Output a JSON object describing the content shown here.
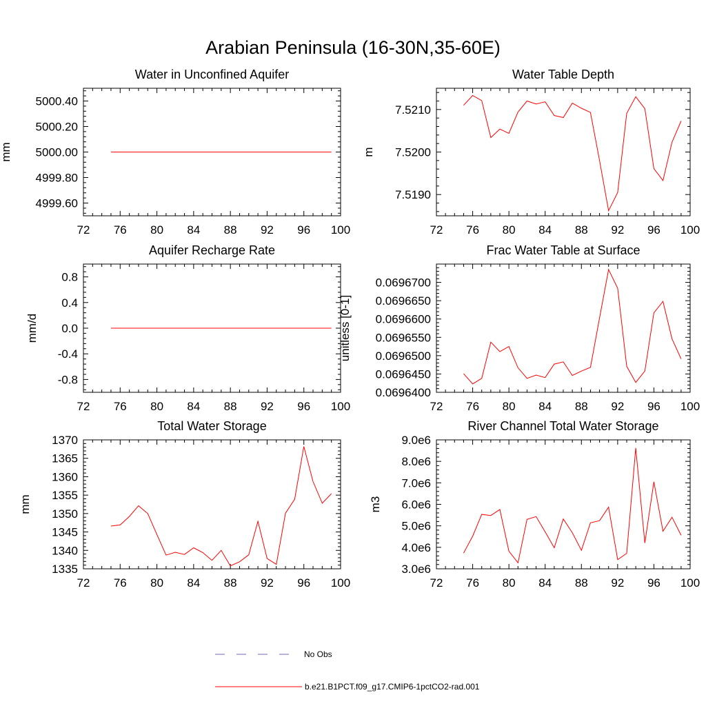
{
  "figure": {
    "title": "Arabian Peninsula (16-30N,35-60E)"
  },
  "legend": {
    "entries": [
      {
        "label": "No Obs",
        "color": "#6b6bb8",
        "dash": true
      },
      {
        "label": "b.e21.B1PCT.f09_g17.CMIP6-1pctCO2-rad.001",
        "color": "#ff0000",
        "dash": false
      }
    ]
  },
  "chart_data": [
    {
      "type": "line",
      "title": "Water in Unconfined Aquifer",
      "xlabel": "",
      "ylabel": "mm",
      "xlim": [
        72,
        100
      ],
      "ylim": [
        4999.5,
        5000.5
      ],
      "xticks": [
        72,
        76,
        80,
        84,
        88,
        92,
        96,
        100
      ],
      "yticks": [
        4999.6,
        4999.8,
        5000.0,
        5000.2,
        5000.4
      ],
      "ytick_labels": [
        "4999.60",
        "4999.80",
        "5000.00",
        "5000.20",
        "5000.40"
      ],
      "x": [
        75,
        76,
        77,
        78,
        79,
        80,
        81,
        82,
        83,
        84,
        85,
        86,
        87,
        88,
        89,
        90,
        91,
        92,
        93,
        94,
        95,
        96,
        97,
        98,
        99
      ],
      "series": [
        {
          "color": "#ff0000",
          "values": [
            5000.0,
            5000.0,
            5000.0,
            5000.0,
            5000.0,
            5000.0,
            5000.0,
            5000.0,
            5000.0,
            5000.0,
            5000.0,
            5000.0,
            5000.0,
            5000.0,
            5000.0,
            5000.0,
            5000.0,
            5000.0,
            5000.0,
            5000.0,
            5000.0,
            5000.0,
            5000.0,
            5000.0,
            5000.0
          ]
        }
      ]
    },
    {
      "type": "line",
      "title": "Water Table Depth",
      "xlabel": "",
      "ylabel": "m",
      "xlim": [
        72,
        100
      ],
      "ylim": [
        7.5185,
        7.5215
      ],
      "xticks": [
        72,
        76,
        80,
        84,
        88,
        92,
        96,
        100
      ],
      "yticks": [
        7.519,
        7.52,
        7.521
      ],
      "ytick_labels": [
        "7.5190",
        "7.5200",
        "7.5210"
      ],
      "x": [
        75,
        76,
        77,
        78,
        79,
        80,
        81,
        82,
        83,
        84,
        85,
        86,
        87,
        88,
        89,
        90,
        91,
        92,
        93,
        94,
        95,
        96,
        97,
        98,
        99
      ],
      "series": [
        {
          "color": "#ff0000",
          "values": [
            7.5211,
            7.52133,
            7.52121,
            7.52034,
            7.52054,
            7.52044,
            7.52094,
            7.5212,
            7.52113,
            7.52118,
            7.52086,
            7.52081,
            7.52115,
            7.52103,
            7.52093,
            7.5198,
            7.51862,
            7.51905,
            7.52091,
            7.5213,
            7.52102,
            7.51961,
            7.51933,
            7.52023,
            7.52073
          ]
        }
      ]
    },
    {
      "type": "line",
      "title": "Aquifer Recharge Rate",
      "xlabel": "",
      "ylabel": "mm/d",
      "xlim": [
        72,
        100
      ],
      "ylim": [
        -1.0,
        1.0
      ],
      "xticks": [
        72,
        76,
        80,
        84,
        88,
        92,
        96,
        100
      ],
      "yticks": [
        -0.8,
        -0.4,
        0.0,
        0.4,
        0.8
      ],
      "ytick_labels": [
        "-0.8",
        "-0.4",
        "0.0",
        "0.4",
        "0.8"
      ],
      "x": [
        75,
        76,
        77,
        78,
        79,
        80,
        81,
        82,
        83,
        84,
        85,
        86,
        87,
        88,
        89,
        90,
        91,
        92,
        93,
        94,
        95,
        96,
        97,
        98,
        99
      ],
      "series": [
        {
          "color": "#ff0000",
          "values": [
            0,
            0,
            0,
            0,
            0,
            0,
            0,
            0,
            0,
            0,
            0,
            0,
            0,
            0,
            0,
            0,
            0,
            0,
            0,
            0,
            0,
            0,
            0,
            0,
            0
          ]
        }
      ]
    },
    {
      "type": "line",
      "title": "Frac Water Table at Surface",
      "xlabel": "",
      "ylabel": "unitless [0-1]",
      "xlim": [
        72,
        100
      ],
      "ylim": [
        0.06964,
        0.069675
      ],
      "xticks": [
        72,
        76,
        80,
        84,
        88,
        92,
        96,
        100
      ],
      "yticks": [
        0.06964,
        0.069645,
        0.06965,
        0.069655,
        0.06966,
        0.069665,
        0.06967
      ],
      "ytick_labels": [
        "0.0696400",
        "0.0696450",
        "0.0696500",
        "0.0696550",
        "0.0696600",
        "0.0696650",
        "0.0696700"
      ],
      "x": [
        75,
        76,
        77,
        78,
        79,
        80,
        81,
        82,
        83,
        84,
        85,
        86,
        87,
        88,
        89,
        90,
        91,
        92,
        93,
        94,
        95,
        96,
        97,
        98,
        99
      ],
      "series": [
        {
          "color": "#ff0000",
          "values": [
            0.0696451,
            0.0696423,
            0.0696438,
            0.0696537,
            0.0696511,
            0.0696525,
            0.0696467,
            0.0696438,
            0.0696447,
            0.069644,
            0.0696477,
            0.0696483,
            0.0696446,
            0.0696458,
            0.0696468,
            0.0696603,
            0.0696735,
            0.0696684,
            0.0696471,
            0.0696427,
            0.0696458,
            0.0696617,
            0.0696648,
            0.0696546,
            0.0696491
          ]
        }
      ]
    },
    {
      "type": "line",
      "title": "Total Water Storage",
      "xlabel": "",
      "ylabel": "mm",
      "xlim": [
        72,
        100
      ],
      "ylim": [
        1335,
        1370
      ],
      "xticks": [
        72,
        76,
        80,
        84,
        88,
        92,
        96,
        100
      ],
      "yticks": [
        1335,
        1340,
        1345,
        1350,
        1355,
        1360,
        1365,
        1370
      ],
      "ytick_labels": [
        "1335",
        "1340",
        "1345",
        "1350",
        "1355",
        "1360",
        "1365",
        "1370"
      ],
      "x": [
        75,
        76,
        77,
        78,
        79,
        80,
        81,
        82,
        83,
        84,
        85,
        86,
        87,
        88,
        89,
        90,
        91,
        92,
        93,
        94,
        95,
        96,
        97,
        98,
        99
      ],
      "series": [
        {
          "color": "#ff0000",
          "values": [
            1346.6,
            1346.9,
            1349.2,
            1352.1,
            1350.0,
            1344.3,
            1338.7,
            1339.5,
            1338.9,
            1340.7,
            1339.4,
            1337.3,
            1340.0,
            1335.8,
            1336.9,
            1338.8,
            1347.9,
            1337.8,
            1336.2,
            1350.1,
            1353.9,
            1368.2,
            1358.7,
            1352.8,
            1355.4
          ]
        }
      ]
    },
    {
      "type": "line",
      "title": "River Channel Total Water Storage",
      "xlabel": "",
      "ylabel": "m3",
      "xlim": [
        72,
        100
      ],
      "ylim": [
        3000000,
        9000000
      ],
      "xticks": [
        72,
        76,
        80,
        84,
        88,
        92,
        96,
        100
      ],
      "yticks": [
        3000000,
        4000000,
        5000000,
        6000000,
        7000000,
        8000000,
        9000000
      ],
      "ytick_labels": [
        "3.0e6",
        "4.0e6",
        "5.0e6",
        "6.0e6",
        "7.0e6",
        "8.0e6",
        "9.0e6"
      ],
      "x": [
        75,
        76,
        77,
        78,
        79,
        80,
        81,
        82,
        83,
        84,
        85,
        86,
        87,
        88,
        89,
        90,
        91,
        92,
        93,
        94,
        95,
        96,
        97,
        98,
        99
      ],
      "series": [
        {
          "color": "#ff0000",
          "values": [
            3730000,
            4520000,
            5530000,
            5480000,
            5760000,
            3820000,
            3280000,
            5300000,
            5430000,
            4720000,
            3980000,
            5320000,
            4680000,
            3860000,
            5140000,
            5240000,
            5870000,
            3430000,
            3720000,
            8620000,
            4200000,
            7050000,
            4750000,
            5400000,
            4560000
          ]
        }
      ]
    }
  ]
}
